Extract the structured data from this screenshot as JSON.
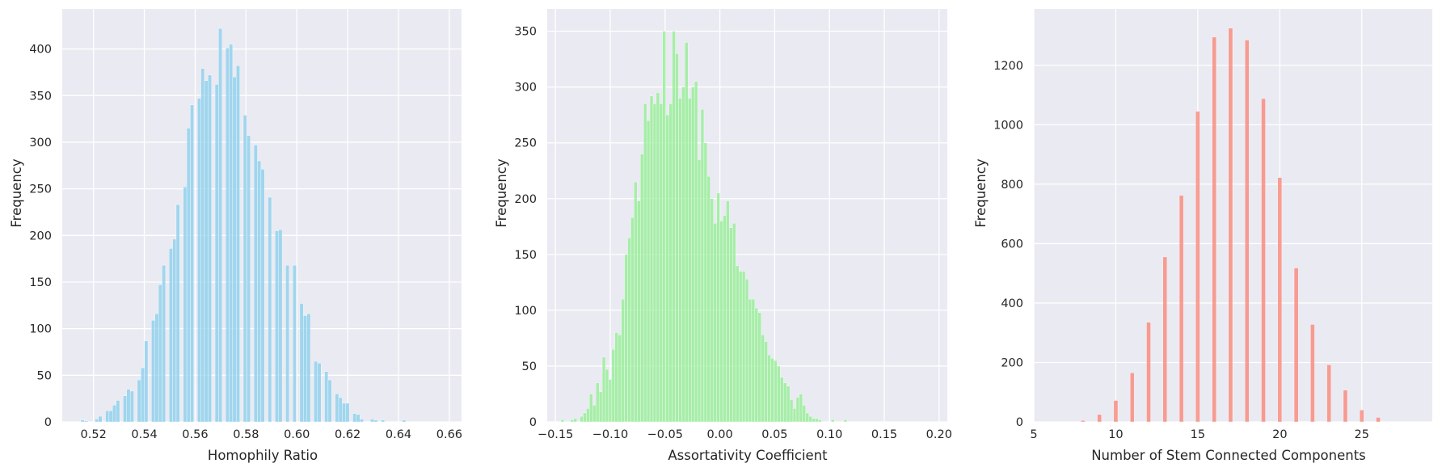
{
  "figure": {
    "background": "#ffffff",
    "panel_background": "#eaeaf2",
    "grid_color": "#ffffff",
    "text_color": "#262626"
  },
  "chart_data": [
    {
      "type": "bar",
      "subtype": "histogram",
      "title": "",
      "xlabel": "Homophily Ratio",
      "ylabel": "Frequency",
      "bar_color": "#87ceeb",
      "xlim": [
        0.5077,
        0.6648
      ],
      "ylim": [
        0,
        443
      ],
      "xticks": [
        0.52,
        0.54,
        0.56,
        0.58,
        0.6,
        0.62,
        0.64,
        0.66
      ],
      "xtick_labels": [
        "0.52",
        "0.54",
        "0.56",
        "0.58",
        "0.60",
        "0.62",
        "0.64",
        "0.66"
      ],
      "yticks": [
        0,
        50,
        100,
        150,
        200,
        250,
        300,
        350,
        400
      ],
      "ytick_labels": [
        "0",
        "50",
        "100",
        "150",
        "200",
        "250",
        "300",
        "350",
        "400"
      ],
      "grid": true,
      "bin_start": 0.515,
      "bin_width": 0.00139,
      "values": [
        2,
        1,
        0,
        0,
        3,
        6,
        0,
        12,
        12,
        18,
        23,
        0,
        28,
        35,
        33,
        0,
        45,
        58,
        87,
        0,
        109,
        116,
        147,
        168,
        0,
        186,
        196,
        233,
        0,
        252,
        315,
        340,
        0,
        347,
        379,
        366,
        372,
        0,
        362,
        422,
        0,
        401,
        405,
        370,
        382,
        0,
        329,
        307,
        0,
        297,
        280,
        271,
        0,
        241,
        0,
        205,
        206,
        0,
        168,
        0,
        168,
        0,
        127,
        114,
        116,
        0,
        65,
        63,
        0,
        54,
        45,
        0,
        30,
        26,
        20,
        20,
        0,
        9,
        8,
        3,
        0,
        0,
        3,
        2,
        0,
        2,
        0,
        0,
        0,
        0,
        0,
        2,
        0,
        0,
        0,
        0,
        0,
        0,
        0,
        0,
        0,
        0,
        0,
        0
      ]
    },
    {
      "type": "bar",
      "subtype": "histogram",
      "title": "",
      "xlabel": "Assortativity Coefficient",
      "ylabel": "Frequency",
      "bar_color": "#90ee90",
      "xlim": [
        -0.1575,
        0.2075
      ],
      "ylim": [
        0,
        370
      ],
      "xticks": [
        -0.15,
        -0.1,
        -0.05,
        0.0,
        0.05,
        0.1,
        0.15,
        0.2
      ],
      "xtick_labels": [
        "−0.15",
        "−0.10",
        "−0.05",
        "0.00",
        "0.05",
        "0.10",
        "0.15",
        "0.20"
      ],
      "yticks": [
        0,
        50,
        100,
        150,
        200,
        250,
        300,
        350
      ],
      "ytick_labels": [
        "0",
        "50",
        "100",
        "150",
        "200",
        "250",
        "300",
        "350"
      ],
      "grid": true,
      "bin_start": -0.145,
      "bin_width": 0.0029,
      "values": [
        2,
        0,
        0,
        2,
        3,
        0,
        5,
        8,
        12,
        25,
        15,
        35,
        27,
        58,
        47,
        38,
        65,
        80,
        78,
        110,
        150,
        165,
        183,
        215,
        198,
        240,
        285,
        270,
        292,
        285,
        295,
        285,
        350,
        275,
        285,
        350,
        330,
        290,
        300,
        340,
        290,
        300,
        305,
        235,
        280,
        250,
        220,
        200,
        178,
        205,
        180,
        185,
        198,
        174,
        178,
        140,
        135,
        135,
        128,
        110,
        110,
        102,
        98,
        78,
        72,
        60,
        57,
        55,
        50,
        40,
        35,
        32,
        20,
        12,
        22,
        25,
        15,
        8,
        5,
        3,
        3,
        2,
        0,
        0,
        0,
        2,
        0,
        0,
        0,
        2,
        0,
        0,
        0,
        0,
        0,
        0,
        0,
        0,
        0,
        0,
        0,
        0,
        0,
        0,
        0,
        0,
        0,
        0,
        0,
        0,
        0,
        0,
        0,
        0,
        0,
        0
      ]
    },
    {
      "type": "bar",
      "subtype": "histogram",
      "title": "",
      "xlabel": "Number of Stem Connected Components",
      "ylabel": "Frequency",
      "bar_color": "#fa8072",
      "xlim": [
        5.0,
        29.3
      ],
      "ylim": [
        0,
        1390
      ],
      "xticks": [
        5,
        10,
        15,
        20,
        25
      ],
      "xtick_labels": [
        "5",
        "10",
        "15",
        "20",
        "25"
      ],
      "yticks": [
        0,
        200,
        400,
        600,
        800,
        1000,
        1200
      ],
      "ytick_labels": [
        "0",
        "200",
        "400",
        "600",
        "800",
        "1000",
        "1200"
      ],
      "grid": true,
      "bin_width": 0.25,
      "x": [
        8,
        9,
        10,
        11,
        12,
        13,
        14,
        15,
        16,
        17,
        18,
        19,
        20,
        21,
        22,
        23,
        24,
        25,
        26
      ],
      "values": [
        5,
        25,
        72,
        165,
        335,
        555,
        762,
        1045,
        1295,
        1325,
        1285,
        1088,
        822,
        518,
        328,
        192,
        107,
        40,
        15
      ]
    }
  ]
}
